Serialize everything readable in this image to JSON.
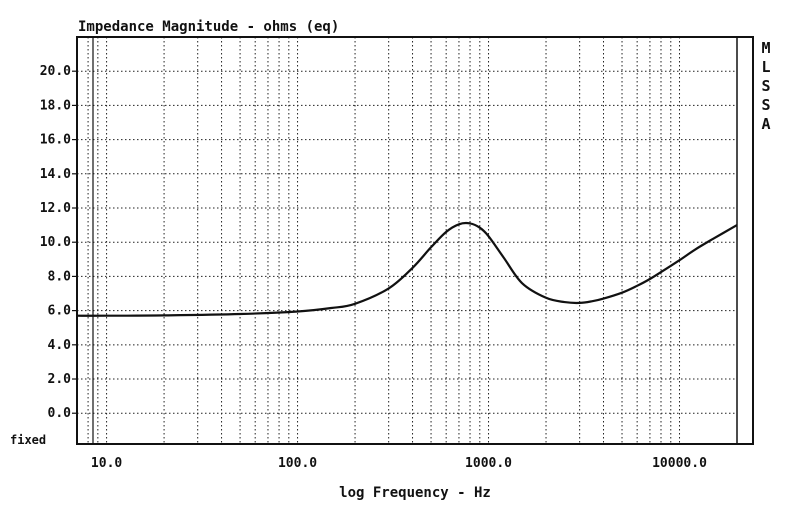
{
  "chart_data": {
    "type": "line",
    "title": "Impedance Magnitude - ohms (eq)",
    "xlabel": "log Frequency - Hz",
    "ylabel": "",
    "x_scale": "log",
    "xlim": [
      7,
      20000
    ],
    "ylim": [
      -1.8,
      22.0
    ],
    "grid": true,
    "y_ticks": [
      "20.0",
      "18.0",
      "16.0",
      "14.0",
      "12.0",
      "10.0",
      "8.0",
      "6.0",
      "4.0",
      "2.0",
      "0.0"
    ],
    "x_ticks": [
      "10.0",
      "100.0",
      "1000.0",
      "10000.0"
    ],
    "corner_label": "fixed",
    "side_label": [
      "M",
      "L",
      "S",
      "S",
      "A"
    ],
    "series": [
      {
        "x": [
          7,
          10,
          20,
          50,
          100,
          150,
          200,
          300,
          400,
          500,
          600,
          700,
          800,
          900,
          1000,
          1200,
          1500,
          2000,
          2500,
          3000,
          3500,
          4000,
          5000,
          6000,
          7000,
          8000,
          10000,
          12000,
          15000,
          20000
        ],
        "values": [
          5.7,
          5.7,
          5.72,
          5.8,
          5.95,
          6.15,
          6.4,
          7.3,
          8.5,
          9.7,
          10.6,
          11.05,
          11.1,
          10.85,
          10.35,
          9.1,
          7.6,
          6.75,
          6.5,
          6.45,
          6.55,
          6.7,
          7.05,
          7.45,
          7.85,
          8.25,
          8.95,
          9.55,
          10.2,
          11.0
        ]
      }
    ]
  }
}
